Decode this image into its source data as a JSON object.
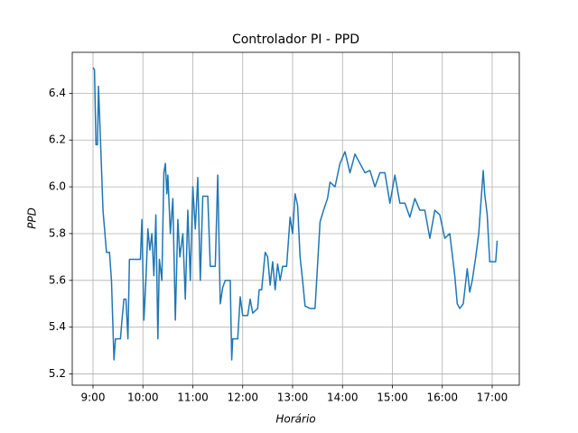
{
  "chart_data": {
    "type": "line",
    "title": "Controlador PI - PPD",
    "x_label": "Horário",
    "y_label": "PPD",
    "xlim": [
      8.584,
      17.543
    ],
    "ylim": [
      5.152,
      6.575
    ],
    "grid": true,
    "xticks": [
      {
        "value": 9,
        "label": "9:00"
      },
      {
        "value": 10,
        "label": "10:00"
      },
      {
        "value": 11,
        "label": "11:00"
      },
      {
        "value": 12,
        "label": "12:00"
      },
      {
        "value": 13,
        "label": "13:00"
      },
      {
        "value": 14,
        "label": "14:00"
      },
      {
        "value": 15,
        "label": "15:00"
      },
      {
        "value": 16,
        "label": "16:00"
      },
      {
        "value": 17,
        "label": "17:00"
      }
    ],
    "yticks": [
      5.2,
      5.4,
      5.6,
      5.8,
      {
        "value": 6,
        "label": "6.0"
      },
      6.2,
      6.4
    ],
    "x": [
      9.0,
      9.03,
      9.06,
      9.09,
      9.11,
      9.15,
      9.2,
      9.27,
      9.33,
      9.37,
      9.42,
      9.45,
      9.55,
      9.58,
      9.62,
      9.66,
      9.7,
      9.73,
      9.85,
      9.95,
      9.98,
      10.02,
      10.06,
      10.1,
      10.14,
      10.18,
      10.22,
      10.26,
      10.3,
      10.33,
      10.38,
      10.42,
      10.45,
      10.48,
      10.5,
      10.55,
      10.6,
      10.65,
      10.7,
      10.74,
      10.8,
      10.85,
      10.9,
      10.95,
      11.0,
      11.05,
      11.1,
      11.15,
      11.2,
      11.3,
      11.35,
      11.45,
      11.5,
      11.55,
      11.6,
      11.65,
      11.75,
      11.78,
      11.8,
      11.9,
      11.95,
      12.0,
      12.1,
      12.15,
      12.2,
      12.3,
      12.33,
      12.38,
      12.45,
      12.5,
      12.55,
      12.6,
      12.65,
      12.7,
      12.75,
      12.8,
      12.88,
      12.95,
      13.0,
      13.05,
      13.1,
      13.15,
      13.2,
      13.25,
      13.35,
      13.45,
      13.55,
      13.62,
      13.7,
      13.75,
      13.85,
      13.95,
      14.05,
      14.15,
      14.25,
      14.35,
      14.45,
      14.55,
      14.65,
      14.75,
      14.85,
      14.95,
      15.05,
      15.15,
      15.25,
      15.35,
      15.45,
      15.55,
      15.65,
      15.75,
      15.85,
      15.95,
      16.05,
      16.15,
      16.25,
      16.3,
      16.35,
      16.42,
      16.5,
      16.55,
      16.6,
      16.67,
      16.73,
      16.78,
      16.82,
      16.85,
      16.9,
      16.95,
      17.0,
      17.07,
      17.1
    ],
    "series": [
      {
        "name": "PPD",
        "color": "#1f77b4",
        "values": [
          6.51,
          6.5,
          6.18,
          6.18,
          6.43,
          6.2,
          5.9,
          5.72,
          5.72,
          5.6,
          5.26,
          5.35,
          5.35,
          5.43,
          5.52,
          5.52,
          5.35,
          5.69,
          5.69,
          5.69,
          5.86,
          5.43,
          5.6,
          5.82,
          5.73,
          5.8,
          5.62,
          5.88,
          5.35,
          5.69,
          5.6,
          6.06,
          6.1,
          5.97,
          6.05,
          5.8,
          5.95,
          5.43,
          5.86,
          5.7,
          5.8,
          5.52,
          5.9,
          5.6,
          6.0,
          5.82,
          6.04,
          5.6,
          5.96,
          5.96,
          5.66,
          5.66,
          6.05,
          5.5,
          5.57,
          5.6,
          5.6,
          5.26,
          5.35,
          5.35,
          5.53,
          5.45,
          5.45,
          5.52,
          5.46,
          5.48,
          5.56,
          5.56,
          5.72,
          5.7,
          5.58,
          5.68,
          5.56,
          5.67,
          5.6,
          5.66,
          5.66,
          5.87,
          5.8,
          5.97,
          5.92,
          5.7,
          5.6,
          5.49,
          5.48,
          5.48,
          5.85,
          5.9,
          5.95,
          6.02,
          6.0,
          6.1,
          6.15,
          6.06,
          6.14,
          6.1,
          6.06,
          6.07,
          6.0,
          6.06,
          6.06,
          5.93,
          6.05,
          5.93,
          5.93,
          5.87,
          5.95,
          5.9,
          5.9,
          5.78,
          5.9,
          5.88,
          5.78,
          5.8,
          5.62,
          5.5,
          5.48,
          5.5,
          5.65,
          5.55,
          5.6,
          5.7,
          5.8,
          5.95,
          6.07,
          5.97,
          5.88,
          5.68,
          5.68,
          5.68,
          5.77
        ]
      }
    ]
  }
}
